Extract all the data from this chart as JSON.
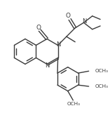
{
  "background_color": "#ffffff",
  "line_color": "#3a3a3a",
  "line_width": 1.0,
  "figsize": [
    1.57,
    1.61
  ],
  "dpi": 100,
  "xlim": [
    0,
    157
  ],
  "ylim": [
    0,
    161
  ]
}
